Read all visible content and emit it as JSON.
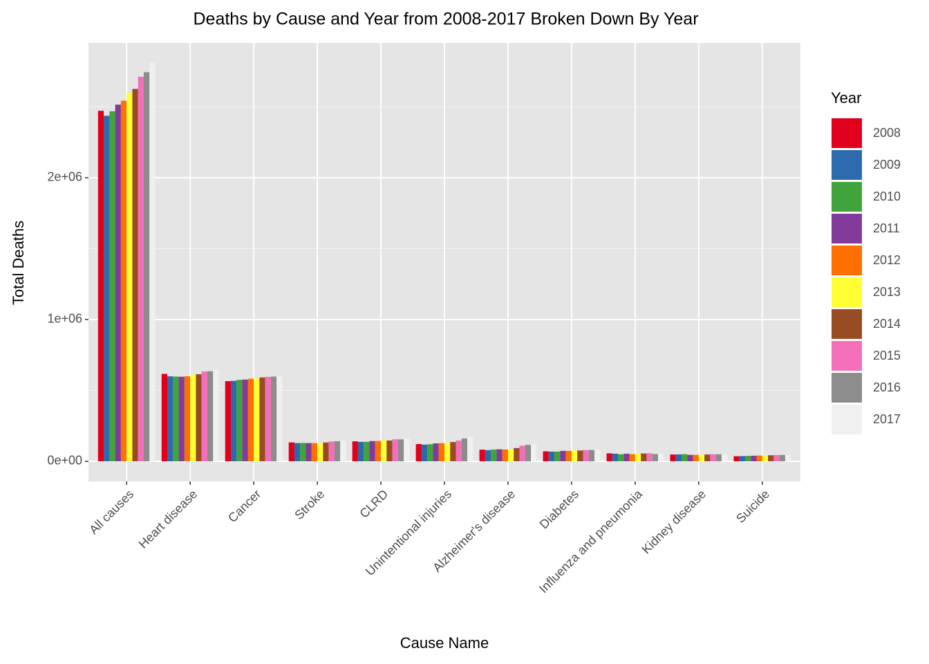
{
  "chart_data": {
    "type": "bar",
    "title": "Deaths by Cause and Year from 2008-2017 Broken Down By Year",
    "x_label": "Cause Name",
    "y_label": "Total Deaths",
    "legend_title": "Year",
    "categories": [
      "All causes",
      "Heart disease",
      "Cancer",
      "Stroke",
      "CLRD",
      "Unintentional injuries",
      "Alzheimer's disease",
      "Diabetes",
      "Influenza and pneumonia",
      "Kidney disease",
      "Suicide"
    ],
    "series": [
      {
        "name": "2008",
        "color": "#e0001b",
        "values": [
          2471984,
          616828,
          565469,
          133750,
          141090,
          121902,
          82435,
          70553,
          56284,
          48237,
          36035
        ]
      },
      {
        "name": "2009",
        "color": "#2d6aad",
        "values": [
          2437163,
          599413,
          567628,
          128842,
          137353,
          118021,
          79003,
          68705,
          53692,
          48935,
          36909
        ]
      },
      {
        "name": "2010",
        "color": "#41a33c",
        "values": [
          2468435,
          597689,
          574743,
          129476,
          138080,
          120859,
          83494,
          69071,
          50097,
          50476,
          38364
        ]
      },
      {
        "name": "2011",
        "color": "#823b9a",
        "values": [
          2515458,
          596577,
          576691,
          128932,
          142943,
          126438,
          84974,
          73831,
          53826,
          45591,
          39518
        ]
      },
      {
        "name": "2012",
        "color": "#ff7000",
        "values": [
          2543279,
          599711,
          582623,
          128546,
          143489,
          127792,
          83637,
          73932,
          50636,
          45622,
          40600
        ]
      },
      {
        "name": "2013",
        "color": "#ffff33",
        "values": [
          2596993,
          611105,
          584881,
          128978,
          149205,
          130557,
          84767,
          75578,
          56979,
          47112,
          41149
        ]
      },
      {
        "name": "2014",
        "color": "#984c24",
        "values": [
          2626418,
          614348,
          591700,
          133103,
          147101,
          136053,
          93541,
          76488,
          55227,
          48146,
          42773
        ]
      },
      {
        "name": "2015",
        "color": "#f46fb9",
        "values": [
          2712630,
          633842,
          595930,
          140323,
          155041,
          146571,
          110561,
          79535,
          57062,
          49959,
          44193
        ]
      },
      {
        "name": "2016",
        "color": "#8c8c8c",
        "values": [
          2744248,
          635260,
          598038,
          142142,
          154596,
          161374,
          116103,
          80058,
          51537,
          50046,
          44965
        ]
      },
      {
        "name": "2017",
        "color": "#f0f0f0",
        "values": [
          2813503,
          647457,
          599108,
          146383,
          160201,
          169936,
          121404,
          83564,
          55672,
          50633,
          47173
        ]
      }
    ],
    "ylim": [
      -141500,
      2951000
    ],
    "yticks": [
      {
        "value": 0,
        "label": "0e+00"
      },
      {
        "value": 1000000,
        "label": "1e+06"
      },
      {
        "value": 2000000,
        "label": "2e+06"
      }
    ],
    "grid": true
  }
}
